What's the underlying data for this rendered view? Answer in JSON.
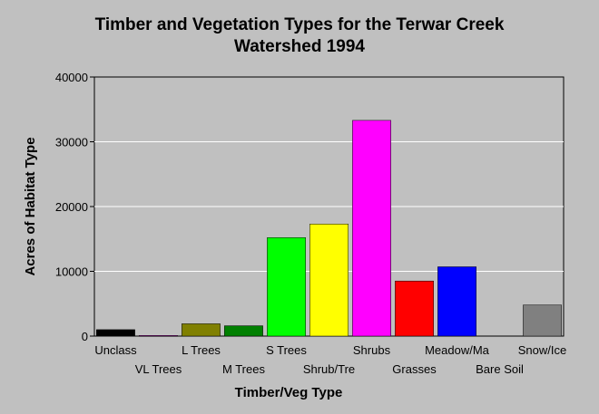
{
  "chart_data": {
    "type": "bar",
    "title_lines": [
      "Timber and Vegetation Types for the Terwar Creek",
      "Watershed 1994"
    ],
    "xlabel": "Timber/Veg Type",
    "ylabel": "Acres of Habitat Type",
    "ylim": [
      0,
      40000
    ],
    "yticks": [
      "0",
      "10000",
      "20000",
      "30000",
      "40000"
    ],
    "grid": true,
    "categories": [
      "Unclass",
      "VL Trees",
      "L Trees",
      "M Trees",
      "S Trees",
      "Shrub/Tre",
      "Shrubs",
      "Grasses",
      "Meadow/Ma",
      "Bare Soil",
      "Snow/Ice"
    ],
    "values": [
      1000,
      100,
      1900,
      1600,
      15200,
      17300,
      33300,
      8500,
      10700,
      0,
      4800
    ],
    "colors": [
      "#000000",
      "#800080",
      "#808000",
      "#008000",
      "#00ff00",
      "#ffff00",
      "#ff00ff",
      "#ff0000",
      "#0000ff",
      "#00ffff",
      "#808080"
    ]
  }
}
